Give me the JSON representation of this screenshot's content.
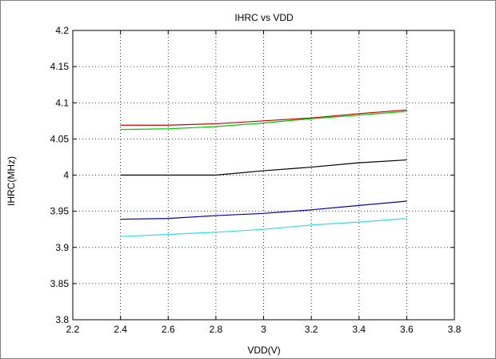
{
  "chart_data": {
    "type": "line",
    "title": "IHRC vs VDD",
    "xlabel": "VDD(V)",
    "ylabel": "IHRC(MHz)",
    "xlim": [
      2.2,
      3.8
    ],
    "ylim": [
      3.8,
      4.2
    ],
    "xticks": [
      2.2,
      2.4,
      2.6,
      2.8,
      3.0,
      3.2,
      3.4,
      3.6,
      3.8
    ],
    "yticks": [
      3.8,
      3.85,
      3.9,
      3.95,
      4.0,
      4.05,
      4.1,
      4.15,
      4.2
    ],
    "xtick_labels": [
      "2.2",
      "2.4",
      "2.6",
      "2.8",
      "3",
      "3.2",
      "3.4",
      "3.6",
      "3.8"
    ],
    "ytick_labels": [
      "3.8",
      "3.85",
      "3.9",
      "3.95",
      "4",
      "4.05",
      "4.1",
      "4.15",
      "4.2"
    ],
    "grid": true,
    "x": [
      2.4,
      2.6,
      2.8,
      3.0,
      3.2,
      3.4,
      3.6
    ],
    "series": [
      {
        "color": "#cc0000",
        "values": [
          4.069,
          4.069,
          4.071,
          4.075,
          4.079,
          4.085,
          4.09
        ]
      },
      {
        "color": "#00cc00",
        "values": [
          4.063,
          4.064,
          4.067,
          4.072,
          4.078,
          4.083,
          4.088
        ]
      },
      {
        "color": "#000000",
        "values": [
          4.0,
          4.0,
          4.0,
          4.006,
          4.011,
          4.017,
          4.021
        ]
      },
      {
        "color": "#0000aa",
        "values": [
          3.939,
          3.94,
          3.944,
          3.947,
          3.952,
          3.958,
          3.964
        ]
      },
      {
        "color": "#33dddd",
        "values": [
          3.915,
          3.918,
          3.921,
          3.925,
          3.931,
          3.935,
          3.94
        ]
      }
    ]
  }
}
